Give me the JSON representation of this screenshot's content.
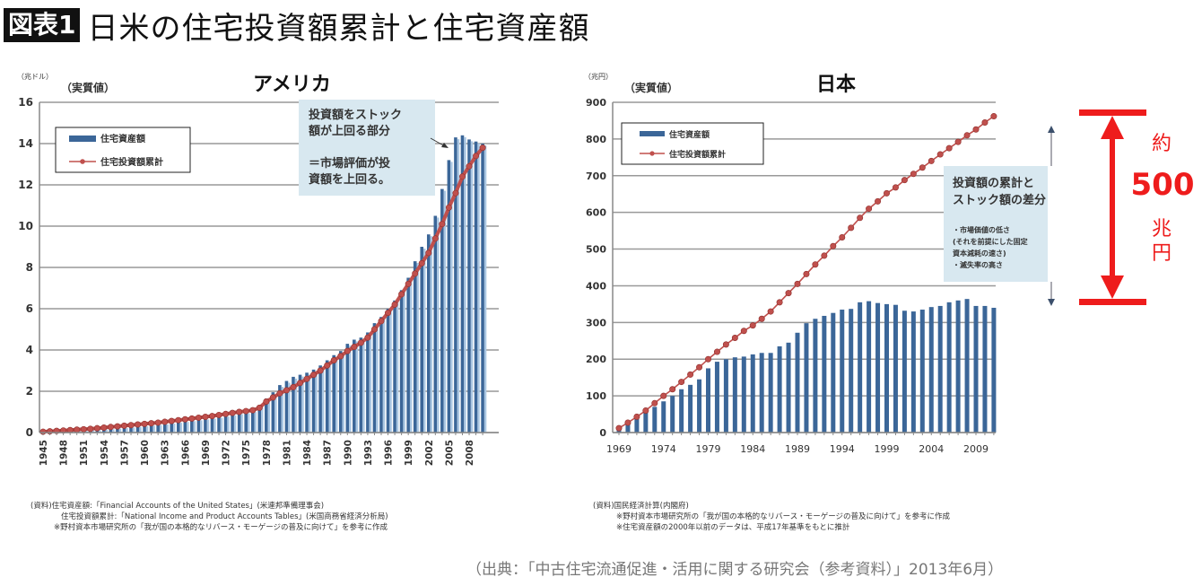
{
  "header": {
    "badge": "図表1",
    "title": "日米の住宅投資額累計と住宅資産額"
  },
  "source": "（出典：「中古住宅流通促進・活用に関する研究会（参考資料）」2013年6月）",
  "colors": {
    "bar": "#3b6698",
    "bar_light": "#a9c6e2",
    "line": "#c0504d",
    "grid": "#999999",
    "callout_bg": "#d8e8f0",
    "accent_red": "#ee1c1c"
  },
  "us_notes": [
    "(資料)住宅資産額:「Financial Accounts of the United States」(米連邦準備理事会)",
    "住宅投資額累計:「National Income and Product Accounts Tables」(米国商務省経済分析局)",
    "※野村資本市場研究所の「我が国の本格的なリバース・モーゲージの普及に向けて」を参考に作成"
  ],
  "jp_notes": [
    "(資料)国民経済計算(内閣府)",
    "※野村資本市場研究所の「我が国の本格的なリバース・モーゲージの普及に向けて」を参考に作成",
    "※住宅資産額の2000年以前のデータは、平成17年基準をもとに推計"
  ],
  "difference_annotation": {
    "prefix": "約",
    "value": "500",
    "unit1": "兆",
    "unit2": "円"
  },
  "chart_data": [
    {
      "type": "bar+line",
      "title": "アメリカ",
      "subtitle": "（実質値）",
      "unit_label": "（兆ドル）",
      "ylim": [
        0,
        16
      ],
      "yticks": [
        0,
        2,
        4,
        6,
        8,
        10,
        12,
        14,
        16
      ],
      "grid": true,
      "legend": [
        "住宅資産額",
        "住宅投資額累計"
      ],
      "legend_position": "top-left",
      "callout": [
        "投資額をストック",
        "額が上回る部分",
        "",
        "＝市場評価が投",
        "資額を上回る。"
      ],
      "xtick_labels": [
        "1945",
        "1948",
        "1951",
        "1954",
        "1957",
        "1960",
        "1963",
        "1966",
        "1969",
        "1972",
        "1975",
        "1978",
        "1981",
        "1984",
        "1987",
        "1990",
        "1993",
        "1996",
        "1999",
        "2002",
        "2005",
        "2008"
      ],
      "x": [
        1945,
        1946,
        1947,
        1948,
        1949,
        1950,
        1951,
        1952,
        1953,
        1954,
        1955,
        1956,
        1957,
        1958,
        1959,
        1960,
        1961,
        1962,
        1963,
        1964,
        1965,
        1966,
        1967,
        1968,
        1969,
        1970,
        1971,
        1972,
        1973,
        1974,
        1975,
        1976,
        1977,
        1978,
        1979,
        1980,
        1981,
        1982,
        1983,
        1984,
        1985,
        1986,
        1987,
        1988,
        1989,
        1990,
        1991,
        1992,
        1993,
        1994,
        1995,
        1996,
        1997,
        1998,
        1999,
        2000,
        2001,
        2002,
        2003,
        2004,
        2005,
        2006,
        2007,
        2008,
        2009,
        2010
      ],
      "series": [
        {
          "name": "住宅資産額",
          "kind": "bar",
          "values": [
            0.05,
            0.07,
            0.09,
            0.11,
            0.13,
            0.15,
            0.17,
            0.19,
            0.21,
            0.23,
            0.25,
            0.28,
            0.3,
            0.33,
            0.36,
            0.39,
            0.42,
            0.45,
            0.48,
            0.52,
            0.56,
            0.6,
            0.64,
            0.68,
            0.72,
            0.76,
            0.8,
            0.86,
            0.92,
            0.98,
            1.02,
            1.08,
            1.3,
            1.65,
            1.95,
            2.3,
            2.5,
            2.7,
            2.8,
            2.9,
            3.05,
            3.25,
            3.5,
            3.75,
            3.95,
            4.3,
            4.5,
            4.6,
            4.85,
            5.3,
            5.6,
            6.0,
            6.4,
            6.9,
            7.5,
            8.3,
            9.0,
            9.6,
            10.5,
            11.8,
            13.2,
            14.3,
            14.4,
            14.2,
            14.1,
            14.0
          ]
        },
        {
          "name": "住宅投資額累計",
          "kind": "line",
          "values": [
            0.04,
            0.06,
            0.08,
            0.1,
            0.12,
            0.14,
            0.16,
            0.18,
            0.21,
            0.24,
            0.27,
            0.3,
            0.33,
            0.36,
            0.39,
            0.42,
            0.45,
            0.48,
            0.52,
            0.56,
            0.6,
            0.64,
            0.68,
            0.72,
            0.76,
            0.8,
            0.85,
            0.9,
            0.95,
            1.0,
            1.04,
            1.08,
            1.2,
            1.5,
            1.7,
            1.9,
            2.05,
            2.2,
            2.4,
            2.6,
            2.8,
            3.0,
            3.25,
            3.5,
            3.7,
            3.95,
            4.15,
            4.35,
            4.6,
            5.0,
            5.4,
            5.8,
            6.2,
            6.7,
            7.2,
            7.7,
            8.2,
            8.7,
            9.4,
            10.1,
            10.9,
            11.6,
            12.4,
            12.9,
            13.4,
            13.8
          ]
        }
      ]
    },
    {
      "type": "bar+line",
      "title": "日本",
      "subtitle": "（実質値）",
      "unit_label": "（兆円）",
      "ylim": [
        0,
        900
      ],
      "yticks": [
        0,
        100,
        200,
        300,
        400,
        500,
        600,
        700,
        800,
        900
      ],
      "grid": true,
      "legend": [
        "住宅資産額",
        "住宅投資額累計"
      ],
      "legend_position": "top-left",
      "callout": {
        "heading": [
          "投資額の累計と",
          "ストック額の差分"
        ],
        "bullets": [
          "・市場価値の低さ",
          "(それを前提にした固定",
          " 資本減耗の速さ)",
          "・滅失率の高さ"
        ]
      },
      "xtick_labels": [
        "1969",
        "1974",
        "1979",
        "1984",
        "1989",
        "1994",
        "1999",
        "2004",
        "2009"
      ],
      "x": [
        1969,
        1970,
        1971,
        1972,
        1973,
        1974,
        1975,
        1976,
        1977,
        1978,
        1979,
        1980,
        1981,
        1982,
        1983,
        1984,
        1985,
        1986,
        1987,
        1988,
        1989,
        1990,
        1991,
        1992,
        1993,
        1994,
        1995,
        1996,
        1997,
        1998,
        1999,
        2000,
        2001,
        2002,
        2003,
        2004,
        2005,
        2006,
        2007,
        2008,
        2009,
        2010,
        2011
      ],
      "series": [
        {
          "name": "住宅資産額",
          "kind": "bar",
          "values": [
            10,
            25,
            40,
            55,
            70,
            85,
            100,
            118,
            130,
            145,
            175,
            193,
            200,
            205,
            207,
            213,
            217,
            217,
            235,
            245,
            272,
            298,
            310,
            318,
            326,
            335,
            337,
            355,
            358,
            353,
            350,
            348,
            332,
            330,
            335,
            342,
            345,
            355,
            360,
            364,
            345,
            345,
            340
          ]
        },
        {
          "name": "住宅投資額累計",
          "kind": "line",
          "values": [
            12,
            27,
            43,
            60,
            80,
            100,
            118,
            138,
            158,
            178,
            200,
            220,
            240,
            258,
            277,
            292,
            310,
            330,
            355,
            380,
            405,
            432,
            458,
            482,
            508,
            532,
            558,
            585,
            610,
            630,
            652,
            668,
            688,
            705,
            722,
            740,
            758,
            775,
            792,
            810,
            826,
            845,
            862
          ]
        }
      ]
    }
  ]
}
